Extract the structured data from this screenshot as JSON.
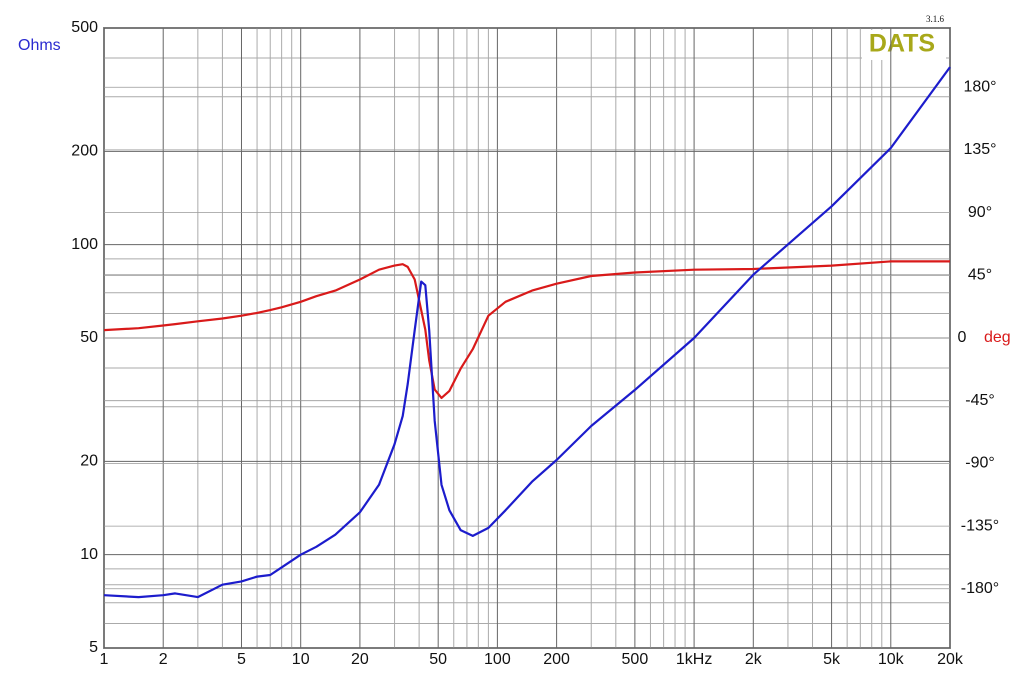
{
  "chart_data": {
    "type": "line",
    "logo": "DATS",
    "version": "3.1.6",
    "ylabel": "Ohms",
    "y2label": "deg",
    "x": [
      1,
      1.5,
      2,
      2.3,
      3,
      4,
      5,
      6,
      7,
      8,
      10,
      12,
      15,
      20,
      25,
      30,
      33,
      35,
      38,
      41,
      43,
      45,
      48,
      52,
      57,
      65,
      75,
      90,
      110,
      150,
      200,
      300,
      500,
      1000,
      2000,
      5000,
      10000,
      20000
    ],
    "series": [
      {
        "color": "#1c1ccc",
        "values": [
          7.4,
          7.3,
          7.4,
          7.5,
          7.3,
          8.0,
          8.2,
          8.5,
          8.6,
          9.1,
          10.0,
          10.6,
          11.6,
          13.7,
          16.8,
          22.7,
          28,
          35.5,
          53,
          76,
          74,
          53,
          27,
          16.8,
          13.9,
          12.0,
          11.5,
          12.2,
          13.9,
          17.2,
          20.2,
          26,
          34,
          50,
          80,
          133,
          205,
          374
        ]
      },
      {
        "color": "#d91a1a",
        "axis": "y2",
        "values": [
          5.7,
          7,
          9,
          10,
          12,
          14,
          16,
          18,
          20,
          22,
          26,
          30,
          34,
          42,
          49,
          52,
          53,
          51,
          42,
          20,
          6,
          -16,
          -37,
          -43,
          -38,
          -22,
          -8,
          16,
          26,
          34,
          39,
          44.5,
          47,
          49,
          49.5,
          52,
          55,
          55
        ]
      }
    ],
    "xlim": [
      1,
      20000
    ],
    "xlog": true,
    "xticks": [
      1,
      2,
      5,
      10,
      20,
      50,
      100,
      200,
      500,
      {
        "value": 1000,
        "label": "1kHz"
      },
      {
        "value": 2000,
        "label": "2k"
      },
      {
        "value": 5000,
        "label": "5k"
      },
      {
        "value": 10000,
        "label": "10k"
      },
      {
        "value": 20000,
        "label": "20k"
      }
    ],
    "xgrid": [
      3,
      4,
      6,
      7,
      8,
      9,
      30,
      40,
      60,
      70,
      80,
      90,
      300,
      400,
      600,
      700,
      800,
      900,
      3000,
      4000,
      6000,
      7000,
      8000,
      9000
    ],
    "ylim": [
      5,
      500
    ],
    "ylog": true,
    "yticks": [
      5,
      10,
      20,
      50,
      100,
      200,
      500
    ],
    "ygrid": [
      6,
      7,
      8,
      9,
      30,
      40,
      60,
      70,
      80,
      90,
      300,
      400
    ],
    "y2lim": [
      -222.5,
      222.5
    ],
    "y2ticks": [
      {
        "value": -180,
        "label": "-180°"
      },
      {
        "value": -135,
        "label": "-135°"
      },
      {
        "value": -90,
        "label": "-90°"
      },
      {
        "value": -45,
        "label": "-45°"
      },
      0,
      {
        "value": 45,
        "label": "45°"
      },
      {
        "value": 90,
        "label": "90°"
      },
      {
        "value": 135,
        "label": "135°"
      },
      {
        "value": 180,
        "label": "180°"
      }
    ]
  }
}
